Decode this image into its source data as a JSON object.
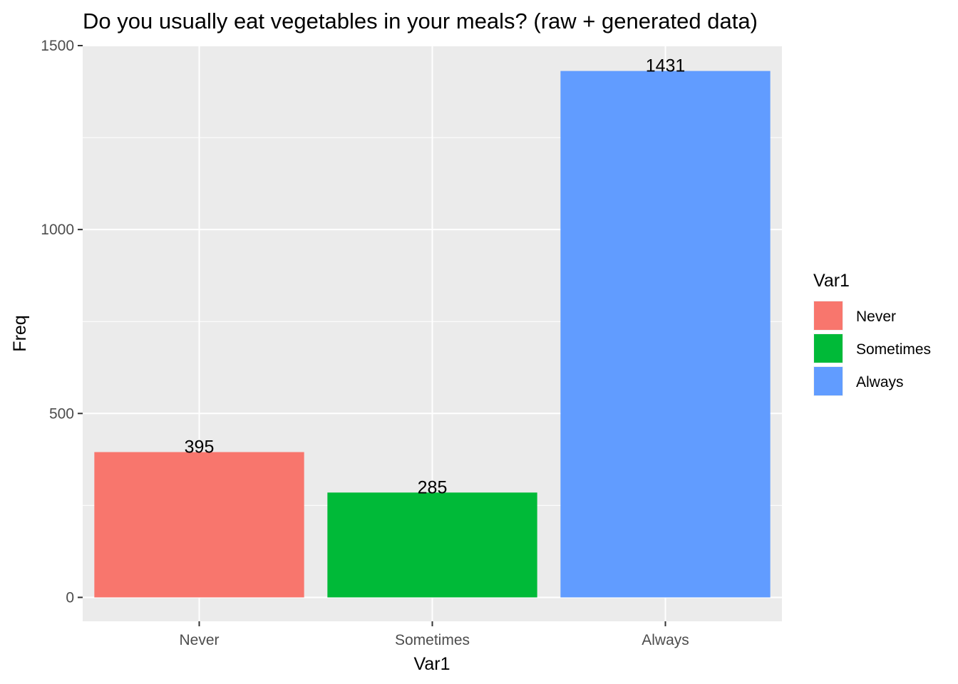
{
  "chart_data": {
    "type": "bar",
    "title": "Do you usually eat vegetables in your meals? (raw + generated data)",
    "xlabel": "Var1",
    "ylabel": "Freq",
    "categories": [
      "Never",
      "Sometimes",
      "Always"
    ],
    "values": [
      395,
      285,
      1431
    ],
    "colors": [
      "#F8766D",
      "#00BA38",
      "#619CFF"
    ],
    "data_labels": [
      "395",
      "285",
      "1431"
    ],
    "ylim": [
      -65,
      1500
    ],
    "y_ticks": [
      0,
      500,
      1000,
      1500
    ],
    "y_tick_labels": [
      "0",
      "500",
      "1000",
      "1500"
    ],
    "grid": true,
    "panel_background": "#EBEBEB",
    "legend": {
      "title": "Var1",
      "position": "right",
      "items": [
        "Never",
        "Sometimes",
        "Always"
      ]
    }
  }
}
